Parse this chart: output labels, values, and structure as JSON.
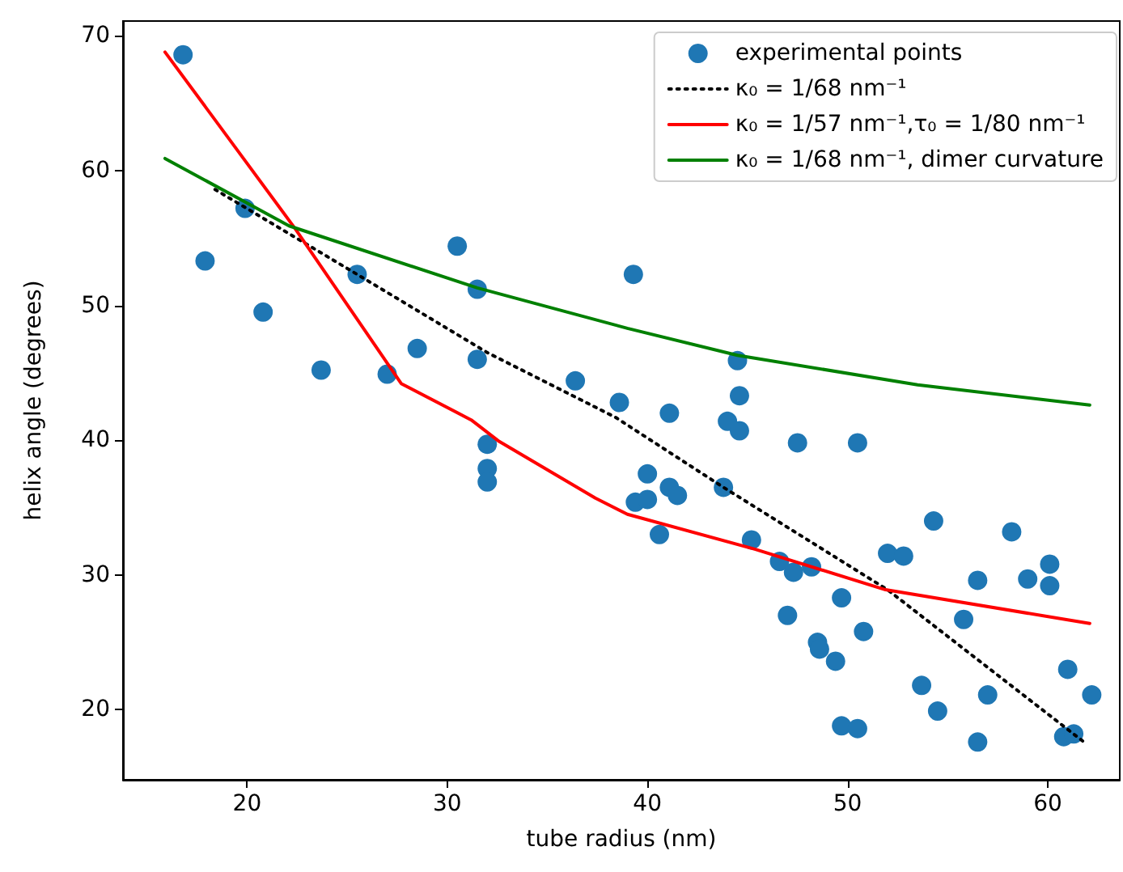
{
  "chart_data": {
    "type": "scatter",
    "xlabel": "tube radius (nm)",
    "ylabel": "helix angle (degrees)",
    "xlim": [
      13.8,
      63.6
    ],
    "ylim": [
      14.8,
      71.1
    ],
    "xticks": [
      20,
      30,
      40,
      50,
      60
    ],
    "yticks": [
      20,
      30,
      40,
      50,
      60,
      70
    ],
    "grid": false,
    "legend": "top right",
    "series": [
      {
        "name": "experimental points",
        "type": "scatter",
        "marker": "circle",
        "color": "#1f77b4",
        "x": [
          16.8,
          17.9,
          19.9,
          20.8,
          23.7,
          25.5,
          27.0,
          28.5,
          30.5,
          31.5,
          31.5,
          32.0,
          32.0,
          32.0,
          36.4,
          38.6,
          39.3,
          39.4,
          40.0,
          40.0,
          40.6,
          41.1,
          41.1,
          41.5,
          44.0,
          44.6,
          44.6,
          44.5,
          43.8,
          45.2,
          46.6,
          47.3,
          47.0,
          47.5,
          48.2,
          48.5,
          48.6,
          49.4,
          49.7,
          49.7,
          50.5,
          50.8,
          50.5,
          52.0,
          52.8,
          54.3,
          53.7,
          54.5,
          55.8,
          56.5,
          56.5,
          57.0,
          58.2,
          59.0,
          60.1,
          60.1,
          61.0,
          60.8,
          61.3,
          62.2
        ],
        "values": [
          68.6,
          53.3,
          57.2,
          49.5,
          45.2,
          52.3,
          44.9,
          46.8,
          54.4,
          51.2,
          46.0,
          39.7,
          37.9,
          36.9,
          44.4,
          42.8,
          52.3,
          35.4,
          35.6,
          37.5,
          33.0,
          42.0,
          36.5,
          35.9,
          41.4,
          40.7,
          43.3,
          45.9,
          36.5,
          32.6,
          31.0,
          30.2,
          27.0,
          39.8,
          30.6,
          25.0,
          24.5,
          23.6,
          28.3,
          18.8,
          18.6,
          25.8,
          39.8,
          31.6,
          31.4,
          34.0,
          21.8,
          19.9,
          26.7,
          29.6,
          17.6,
          21.1,
          33.2,
          29.7,
          30.8,
          29.2,
          23.0,
          18.0,
          18.2,
          21.1
        ]
      },
      {
        "name": "κ₀ = 1/68 nm⁻¹",
        "type": "line",
        "marker": "none",
        "line_style": "dotted",
        "color": "#000000",
        "x": [
          18.4,
          25.5,
          32.0,
          38.4,
          43.8,
          52.0,
          61.9
        ],
        "values": [
          58.6,
          52.3,
          46.5,
          41.7,
          36.5,
          28.9,
          17.5
        ]
      },
      {
        "name": "κ₀ = 1/57 nm⁻¹,τ₀ = 1/80 nm⁻¹",
        "type": "line",
        "marker": "none",
        "line_style": "solid",
        "color": "#ff0000",
        "x": [
          15.9,
          22.4,
          27.7,
          31.2,
          32.6,
          37.4,
          39.0,
          45.4,
          51.9,
          62.1
        ],
        "values": [
          68.8,
          55.7,
          44.2,
          41.5,
          39.9,
          35.7,
          34.5,
          31.9,
          28.9,
          26.4
        ]
      },
      {
        "name": "κ₀ = 1/68 nm⁻¹, dimer curvature",
        "type": "line",
        "marker": "none",
        "line_style": "solid",
        "color": "#008000",
        "x": [
          15.9,
          22.1,
          31.5,
          39.0,
          44.5,
          53.5,
          62.1
        ],
        "values": [
          60.9,
          55.9,
          51.3,
          48.3,
          46.3,
          44.1,
          42.6
        ]
      }
    ]
  }
}
